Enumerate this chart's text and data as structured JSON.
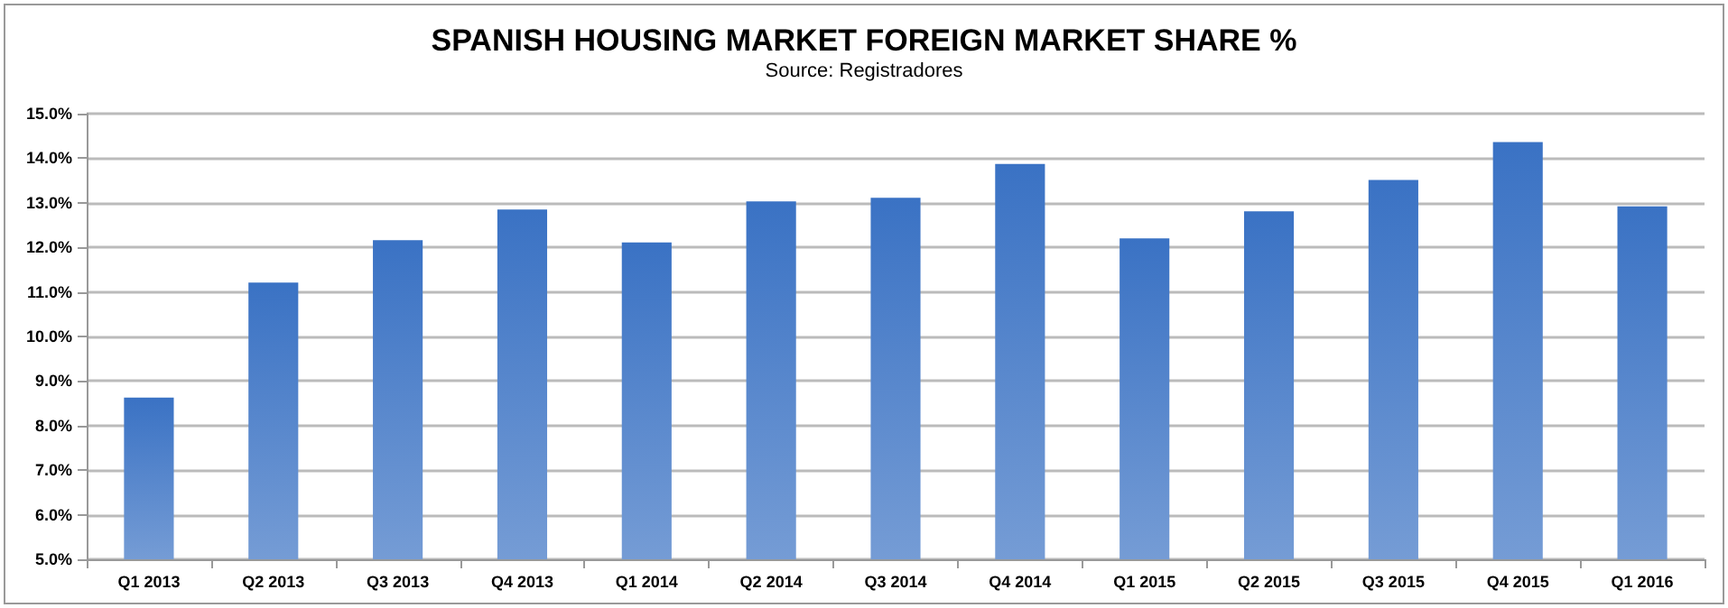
{
  "chart_data": {
    "type": "bar",
    "title": "SPANISH HOUSING MARKET FOREIGN MARKET SHARE %",
    "subtitle": "Source: Registradores",
    "categories": [
      "Q1 2013",
      "Q2 2013",
      "Q3 2013",
      "Q4 2013",
      "Q1 2014",
      "Q2 2014",
      "Q3 2014",
      "Q4 2014",
      "Q1 2015",
      "Q2 2015",
      "Q3 2015",
      "Q4 2015",
      "Q1 2016"
    ],
    "values": [
      8.63,
      11.21,
      12.16,
      12.85,
      12.11,
      13.03,
      13.11,
      13.87,
      12.2,
      12.81,
      13.51,
      14.36,
      12.92
    ],
    "color": "#3a72c4",
    "ylim": [
      5,
      15
    ],
    "yticks": [
      {
        "value": 5,
        "label": "5.0%"
      },
      {
        "value": 6,
        "label": "6.0%"
      },
      {
        "value": 7,
        "label": "7.0%"
      },
      {
        "value": 8,
        "label": "8.0%"
      },
      {
        "value": 9,
        "label": "9.0%"
      },
      {
        "value": 10,
        "label": "10.0%"
      },
      {
        "value": 11,
        "label": "11.0%"
      },
      {
        "value": 12,
        "label": "12.0%"
      },
      {
        "value": 13,
        "label": "13.0%"
      },
      {
        "value": 14,
        "label": "14.0%"
      },
      {
        "value": 15,
        "label": "15.0%"
      }
    ],
    "grid": "y"
  }
}
